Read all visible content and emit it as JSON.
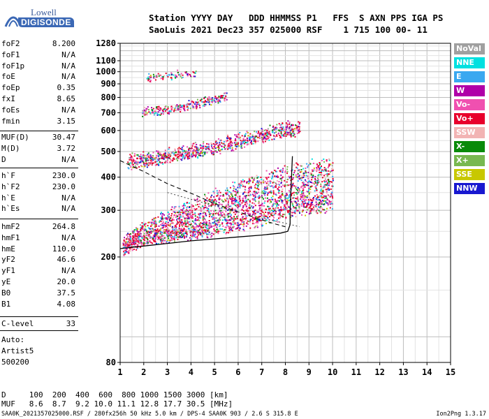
{
  "logo": {
    "lowell": "Lowell",
    "digisonde": "DIGISONDE"
  },
  "header": {
    "line1": "Station YYYY DAY   DDD HHMMSS P1   FFS  S AXN PPS IGA PS",
    "line2": "SaoLuis 2021 Dec23 357 025000 RSF    1 715 100 00- 11"
  },
  "params_a": [
    {
      "name": "foF2",
      "value": "8.200"
    },
    {
      "name": "foF1",
      "value": "N/A"
    },
    {
      "name": "foF1p",
      "value": "N/A"
    },
    {
      "name": "foE",
      "value": "N/A"
    },
    {
      "name": "foEp",
      "value": "0.35"
    },
    {
      "name": "fxI",
      "value": "8.65"
    },
    {
      "name": "foEs",
      "value": "N/A"
    },
    {
      "name": "fmin",
      "value": "3.15"
    }
  ],
  "params_b": [
    {
      "name": "MUF(D)",
      "value": "30.47"
    },
    {
      "name": "M(D)",
      "value": "3.72"
    },
    {
      "name": "D",
      "value": "N/A"
    }
  ],
  "params_c": [
    {
      "name": "h`F",
      "value": "230.0"
    },
    {
      "name": "h`F2",
      "value": "230.0"
    },
    {
      "name": "h`E",
      "value": "N/A"
    },
    {
      "name": "h`Es",
      "value": "N/A"
    }
  ],
  "params_d": [
    {
      "name": "hmF2",
      "value": "264.8"
    },
    {
      "name": "hmF1",
      "value": "N/A"
    },
    {
      "name": "hmE",
      "value": "110.0"
    },
    {
      "name": "yF2",
      "value": "46.6"
    },
    {
      "name": "yF1",
      "value": "N/A"
    },
    {
      "name": "yE",
      "value": "20.0"
    },
    {
      "name": "B0",
      "value": "37.5"
    },
    {
      "name": "B1",
      "value": "4.08"
    }
  ],
  "params_e": [
    {
      "name": "C-level",
      "value": "33"
    }
  ],
  "auto": {
    "line1": "Auto:",
    "line2": "Artist5",
    "line3": "500200"
  },
  "legend": [
    {
      "label": "NoVal",
      "color": "#a0a0a0"
    },
    {
      "label": "NNE",
      "color": "#00e0e0"
    },
    {
      "label": "E",
      "color": "#3aa8f0"
    },
    {
      "label": "W",
      "color": "#b000a8"
    },
    {
      "label": "Vo-",
      "color": "#f050b0"
    },
    {
      "label": "Vo+",
      "color": "#e8002c"
    },
    {
      "label": "SSW",
      "color": "#f2b4b4"
    },
    {
      "label": "X-",
      "color": "#0a8a0a"
    },
    {
      "label": "X+",
      "color": "#78b850"
    },
    {
      "label": "SSE",
      "color": "#c8c800"
    },
    {
      "label": "NNW",
      "color": "#1818d0"
    }
  ],
  "muf_table": {
    "d_row": "D     100  200  400  600  800 1000 1500 3000 [km]",
    "muf_row": "MUF   8.6  8.7  9.2 10.0 11.1 12.8 17.7 30.5 [MHz]"
  },
  "footer": {
    "left": "SAA0K_2021357025000.RSF / 280fx256h 50 kHz 5.0 km / DPS-4 SAA0K 903 / 2.6 S 315.8 E",
    "right": "Ion2Png 1.3.17"
  },
  "chart_data": {
    "type": "scatter",
    "title": "",
    "xlabel": "",
    "ylabel": "",
    "x_range": [
      1,
      15
    ],
    "y_range": [
      80,
      1280
    ],
    "y_scale": "log",
    "x_ticks": [
      1,
      2,
      3,
      4,
      5,
      6,
      7,
      8,
      9,
      10,
      11,
      12,
      13,
      14,
      15
    ],
    "y_ticks": [
      80,
      200,
      300,
      400,
      500,
      600,
      700,
      800,
      900,
      1000,
      1100,
      1280
    ],
    "grid": true,
    "legend_position": "right",
    "echo_traces": [
      {
        "name": "F trace 1",
        "points": [
          [
            1.1,
            212
          ],
          [
            1.5,
            222
          ],
          [
            2.0,
            232
          ],
          [
            3.0,
            238
          ],
          [
            4.0,
            245
          ],
          [
            5.0,
            252
          ],
          [
            6.0,
            262
          ],
          [
            7.0,
            275
          ],
          [
            8.0,
            292
          ],
          [
            9.0,
            305
          ],
          [
            10.0,
            312
          ]
        ]
      },
      {
        "name": "F trace 2",
        "points": [
          [
            1.3,
            440
          ],
          [
            2.0,
            452
          ],
          [
            3.0,
            468
          ],
          [
            4.0,
            488
          ],
          [
            5.0,
            505
          ],
          [
            6.0,
            528
          ],
          [
            7.0,
            555
          ],
          [
            8.0,
            585
          ],
          [
            8.6,
            595
          ]
        ]
      },
      {
        "name": "F trace 3",
        "points": [
          [
            1.9,
            690
          ],
          [
            3.0,
            710
          ],
          [
            4.0,
            740
          ],
          [
            5.0,
            775
          ],
          [
            5.5,
            800
          ]
        ]
      },
      {
        "name": "F trace 4",
        "points": [
          [
            2.1,
            940
          ],
          [
            3.0,
            955
          ],
          [
            4.2,
            985
          ]
        ]
      }
    ],
    "profile_curve": [
      [
        1.0,
        215
      ],
      [
        2.0,
        220
      ],
      [
        3.0,
        225
      ],
      [
        4.0,
        230
      ],
      [
        5.0,
        234
      ],
      [
        6.0,
        238
      ],
      [
        7.0,
        242
      ],
      [
        7.8,
        246
      ],
      [
        8.1,
        250
      ],
      [
        8.2,
        265
      ],
      [
        8.2,
        300
      ],
      [
        8.25,
        380
      ],
      [
        8.3,
        480
      ]
    ],
    "o_trace": [
      [
        1.0,
        462
      ],
      [
        2.0,
        420
      ],
      [
        3.0,
        378
      ],
      [
        4.0,
        348
      ],
      [
        5.0,
        318
      ],
      [
        6.0,
        296
      ],
      [
        7.0,
        276
      ],
      [
        7.6,
        266
      ],
      [
        8.0,
        260
      ]
    ],
    "x_trace": [
      [
        3.0,
        350
      ],
      [
        4.0,
        330
      ],
      [
        5.0,
        312
      ],
      [
        6.0,
        296
      ],
      [
        7.0,
        280
      ],
      [
        8.0,
        268
      ],
      [
        8.6,
        260
      ]
    ]
  }
}
